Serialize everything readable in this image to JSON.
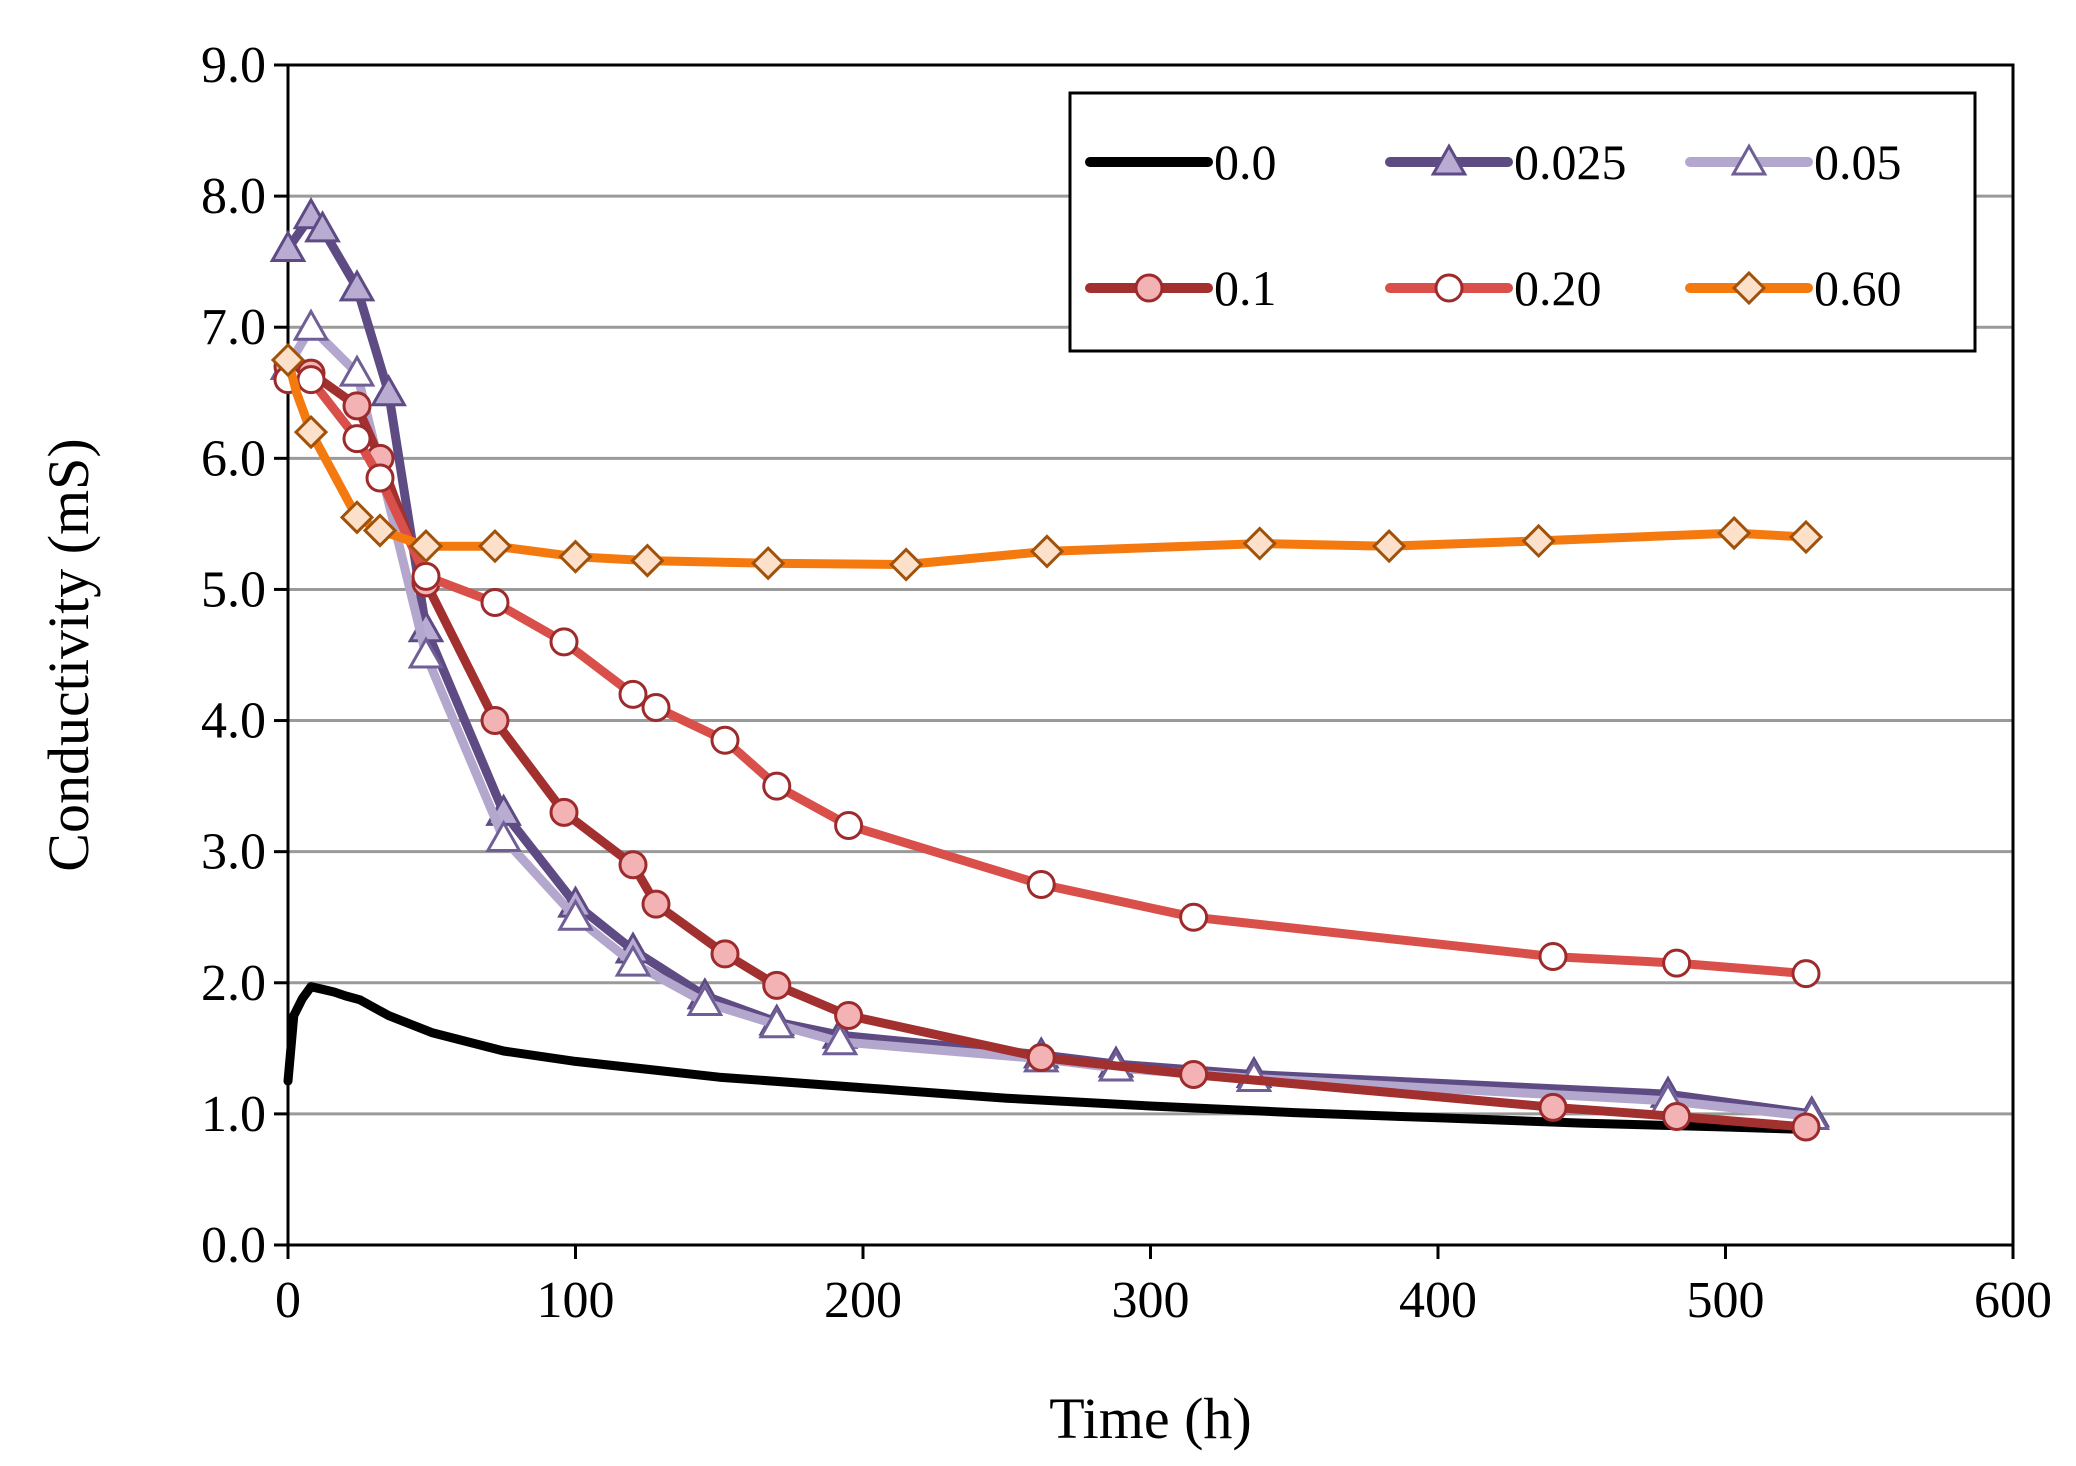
{
  "chart_data": {
    "type": "line",
    "title": "",
    "xlabel": "Time (h)",
    "ylabel": "Conductivity  (mS)",
    "xlim": [
      0,
      600
    ],
    "ylim": [
      0,
      9
    ],
    "xticks": [
      "0",
      "100",
      "200",
      "300",
      "400",
      "500",
      "600"
    ],
    "yticks": [
      "0.0",
      "1.0",
      "2.0",
      "3.0",
      "4.0",
      "5.0",
      "6.0",
      "7.0",
      "8.0",
      "9.0"
    ],
    "grid": "horizontal",
    "legend_position": "top-right",
    "series": [
      {
        "name": "0.0",
        "color": "#000000",
        "marker": "none",
        "x": [
          0,
          2,
          5,
          8,
          12,
          16,
          20,
          25,
          35,
          50,
          75,
          100,
          150,
          200,
          250,
          300,
          350,
          400,
          450,
          500,
          530
        ],
        "y": [
          1.25,
          1.75,
          1.88,
          1.97,
          1.95,
          1.93,
          1.9,
          1.87,
          1.75,
          1.62,
          1.48,
          1.4,
          1.28,
          1.2,
          1.12,
          1.06,
          1.01,
          0.97,
          0.93,
          0.9,
          0.88
        ]
      },
      {
        "name": "0.025",
        "color": "#5e4b84",
        "marker": "triangle-filled",
        "x": [
          0,
          8,
          12,
          24,
          35,
          48,
          75,
          100,
          120,
          145,
          170,
          192,
          262,
          288,
          336,
          480,
          530
        ],
        "y": [
          7.6,
          7.85,
          7.75,
          7.3,
          6.5,
          4.7,
          3.3,
          2.6,
          2.25,
          1.9,
          1.7,
          1.6,
          1.45,
          1.38,
          1.3,
          1.15,
          1.0
        ]
      },
      {
        "name": "0.05",
        "color": "#b4a7cd",
        "marker": "triangle-open",
        "x": [
          0,
          8,
          24,
          48,
          75,
          100,
          120,
          145,
          170,
          192,
          262,
          288,
          336,
          480,
          530
        ],
        "y": [
          6.7,
          7.0,
          6.65,
          4.5,
          3.1,
          2.5,
          2.15,
          1.85,
          1.68,
          1.55,
          1.42,
          1.35,
          1.27,
          1.1,
          0.98
        ]
      },
      {
        "name": "0.1",
        "color": "#a2302f",
        "marker": "circle-filled",
        "x": [
          0,
          8,
          24,
          32,
          48,
          72,
          96,
          120,
          128,
          152,
          170,
          195,
          262,
          315,
          440,
          483,
          528
        ],
        "y": [
          6.7,
          6.65,
          6.4,
          6.0,
          5.05,
          4.0,
          3.3,
          2.9,
          2.6,
          2.22,
          1.98,
          1.75,
          1.43,
          1.3,
          1.05,
          0.98,
          0.9
        ]
      },
      {
        "name": "0.20",
        "color": "#d94f4a",
        "marker": "circle-open",
        "x": [
          0,
          8,
          24,
          32,
          48,
          72,
          96,
          120,
          128,
          152,
          170,
          195,
          262,
          315,
          440,
          483,
          528
        ],
        "y": [
          6.6,
          6.6,
          6.15,
          5.85,
          5.1,
          4.9,
          4.6,
          4.2,
          4.1,
          3.85,
          3.5,
          3.2,
          2.75,
          2.5,
          2.2,
          2.15,
          2.07
        ]
      },
      {
        "name": "0.60",
        "color": "#f47a10",
        "marker": "diamond",
        "x": [
          0,
          3,
          8,
          24,
          32,
          48,
          72,
          100,
          125,
          167,
          215,
          264,
          338,
          383,
          435,
          503,
          528
        ],
        "y": [
          6.75,
          6.5,
          6.2,
          5.55,
          5.45,
          5.33,
          5.33,
          5.25,
          5.22,
          5.2,
          5.19,
          5.29,
          5.35,
          5.33,
          5.37,
          5.43,
          5.4
        ]
      }
    ]
  }
}
